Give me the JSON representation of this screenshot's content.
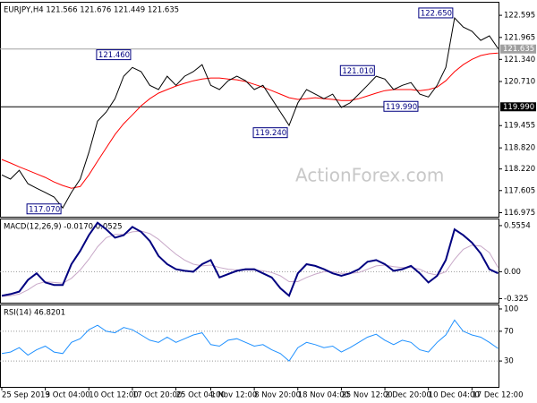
{
  "chart_data": [
    {
      "type": "line",
      "title": "EURJPY,H4 121.566 121.676 121.449 121.635",
      "watermark": "ActionForex.com",
      "categories": [
        "25 Sep 2019",
        null,
        null,
        null,
        null,
        "3 Oct 04:00",
        null,
        null,
        null,
        null,
        "10 Oct 12:00",
        null,
        null,
        null,
        null,
        "17 Oct 20:00",
        null,
        null,
        null,
        null,
        "25 Oct 04:00",
        null,
        null,
        null,
        "1 Nov 12:00",
        null,
        null,
        null,
        null,
        "8 Nov 20:00",
        null,
        null,
        null,
        null,
        "18 Nov 04:00",
        null,
        null,
        null,
        null,
        "25 Nov 12:00",
        null,
        null,
        null,
        null,
        "2 Dec 20:00",
        null,
        null,
        null,
        null,
        "10 Dec 04:00",
        null,
        null,
        null,
        null,
        "17 Dec 12:00",
        null,
        null,
        null
      ],
      "series": [
        {
          "name": "Close",
          "color": "#000000",
          "values": [
            118.05,
            117.93,
            118.18,
            117.8,
            117.67,
            117.55,
            117.42,
            117.11,
            117.55,
            117.93,
            118.69,
            119.58,
            119.84,
            120.22,
            120.86,
            121.11,
            120.99,
            120.6,
            120.48,
            120.86,
            120.6,
            120.86,
            120.99,
            121.19,
            120.6,
            120.48,
            120.73,
            120.86,
            120.73,
            120.48,
            120.6,
            120.22,
            119.84,
            119.46,
            120.1,
            120.48,
            120.35,
            120.22,
            120.35,
            119.97,
            120.1,
            120.35,
            120.6,
            120.86,
            120.78,
            120.48,
            120.6,
            120.68,
            120.35,
            120.27,
            120.6,
            121.11,
            122.52,
            122.26,
            122.14,
            121.88,
            122.01,
            121.65
          ]
        },
        {
          "name": "MA",
          "color": "#ff0000",
          "values": [
            118.49,
            118.39,
            118.28,
            118.18,
            118.08,
            117.98,
            117.85,
            117.75,
            117.67,
            117.72,
            118.05,
            118.44,
            118.82,
            119.2,
            119.51,
            119.76,
            120.02,
            120.22,
            120.38,
            120.48,
            120.58,
            120.66,
            120.73,
            120.78,
            120.81,
            120.81,
            120.78,
            120.76,
            120.71,
            120.63,
            120.55,
            120.45,
            120.35,
            120.25,
            120.2,
            120.22,
            120.25,
            120.22,
            120.2,
            120.17,
            120.17,
            120.22,
            120.3,
            120.38,
            120.45,
            120.48,
            120.48,
            120.48,
            120.45,
            120.48,
            120.55,
            120.73,
            120.99,
            121.19,
            121.34,
            121.45,
            121.5,
            121.52
          ]
        }
      ],
      "ylim": [
        116.86,
        122.98
      ],
      "yticks": [
        122.595,
        121.965,
        {
          "value": 121.34,
          "label": "121.340"
        },
        {
          "value": 120.71,
          "label": "120.710"
        },
        119.455,
        {
          "value": 118.82,
          "label": "118.820"
        },
        {
          "value": 118.22,
          "label": "118.220"
        },
        117.605,
        116.975
      ],
      "hlines": [
        121.635,
        {
          "value": 119.99,
          "label": "119.990"
        }
      ],
      "hline_colors": [
        "#a0a0a0",
        "#000000"
      ],
      "annotations": [
        {
          "x": 7,
          "value": 117.07,
          "label": "117.070"
        },
        {
          "x": 15,
          "value": 121.46,
          "label": "121.460"
        },
        {
          "x": 33,
          "value": 119.24,
          "label": "119.240"
        },
        {
          "x": 43,
          "value": 121.01,
          "label": "121.010"
        },
        {
          "x": 48,
          "value": 119.99,
          "label": "119.990"
        },
        {
          "x": 52,
          "value": 122.65,
          "label": "122.650"
        }
      ]
    },
    {
      "type": "line",
      "title": "MACD(12,26,9) -0.0170 0.0525",
      "series": [
        {
          "name": "MACD",
          "color": "#000080",
          "values": [
            -0.29,
            -0.27,
            -0.24,
            -0.1,
            -0.02,
            -0.13,
            -0.16,
            -0.16,
            0.09,
            0.25,
            0.44,
            0.59,
            0.51,
            0.41,
            0.44,
            0.54,
            0.48,
            0.37,
            0.19,
            0.09,
            0.03,
            0.01,
            0.0,
            0.09,
            0.14,
            -0.07,
            -0.03,
            0.01,
            0.03,
            0.03,
            -0.02,
            -0.07,
            -0.2,
            -0.29,
            -0.02,
            0.09,
            0.07,
            0.03,
            -0.02,
            -0.05,
            -0.02,
            0.03,
            0.12,
            0.14,
            0.09,
            0.01,
            0.03,
            0.07,
            -0.02,
            -0.13,
            -0.05,
            0.14,
            0.51,
            0.44,
            0.35,
            0.22,
            0.03,
            -0.02
          ]
        },
        {
          "name": "Signal",
          "color": "#c8a8c8",
          "values": [
            -0.3,
            -0.29,
            -0.27,
            -0.22,
            -0.15,
            -0.12,
            -0.13,
            -0.14,
            -0.08,
            0.02,
            0.15,
            0.3,
            0.41,
            0.45,
            0.45,
            0.48,
            0.49,
            0.46,
            0.39,
            0.3,
            0.21,
            0.14,
            0.09,
            0.07,
            0.08,
            0.05,
            0.03,
            0.02,
            0.02,
            0.02,
            0.01,
            -0.01,
            -0.05,
            -0.12,
            -0.12,
            -0.07,
            -0.03,
            0.0,
            0.0,
            -0.02,
            -0.02,
            -0.01,
            0.03,
            0.07,
            0.08,
            0.06,
            0.05,
            0.05,
            0.03,
            -0.02,
            -0.04,
            0.0,
            0.15,
            0.27,
            0.32,
            0.31,
            0.23,
            0.05
          ]
        }
      ],
      "ylim": [
        -0.374,
        0.641
      ],
      "yticks": [
        0.5554,
        {
          "value": 0,
          "label": "0.00"
        },
        -0.325
      ],
      "levels": [
        0
      ]
    },
    {
      "type": "line",
      "title": "RSI(14) 46.8201",
      "series": [
        {
          "name": "RSI",
          "color": "#1e90ff",
          "values": [
            40,
            42,
            48,
            38,
            45,
            50,
            42,
            40,
            55,
            60,
            72,
            78,
            70,
            68,
            75,
            72,
            65,
            58,
            55,
            62,
            55,
            60,
            65,
            68,
            52,
            50,
            58,
            60,
            55,
            50,
            52,
            45,
            40,
            30,
            48,
            55,
            52,
            48,
            50,
            42,
            48,
            55,
            62,
            66,
            58,
            52,
            58,
            55,
            45,
            42,
            55,
            65,
            85,
            70,
            65,
            62,
            55,
            46.82
          ]
        }
      ],
      "ylim": [
        -4.8,
        106
      ],
      "yticks": [
        100,
        70,
        30
      ],
      "levels": [
        70,
        30
      ]
    }
  ]
}
